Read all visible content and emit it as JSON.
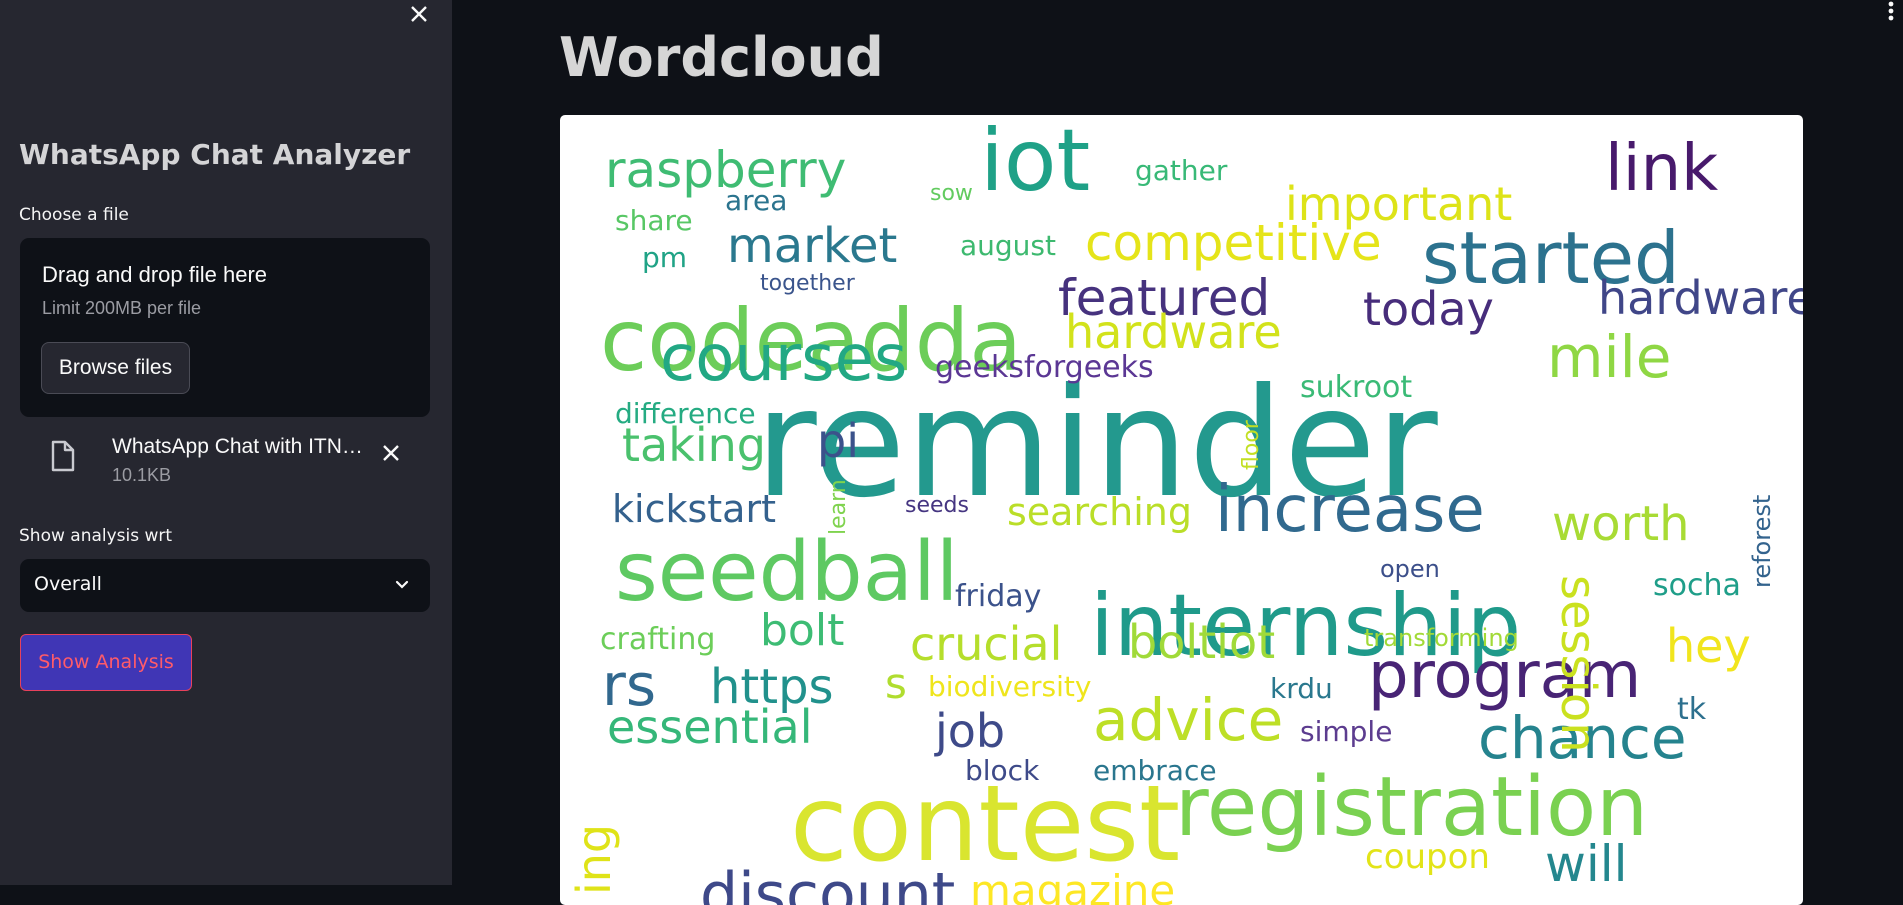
{
  "sidebar": {
    "title": "WhatsApp Chat Analyzer",
    "uploader_label": "Choose a file",
    "dropzone": {
      "instruction": "Drag and drop file here",
      "limit": "Limit 200MB per file",
      "browse_label": "Browse files"
    },
    "file": {
      "name": "WhatsApp Chat with ITN…",
      "size": "10.1KB"
    },
    "select_label": "Show analysis wrt",
    "select_value": "Overall",
    "analysis_button": "Show Analysis"
  },
  "main": {
    "title": "Wordcloud"
  },
  "wordcloud": {
    "words": [
      {
        "text": "reminder",
        "color": "#23998e"
      },
      {
        "text": "contest",
        "color": "#d9e52f"
      },
      {
        "text": "codeadda",
        "color": "#6ccd59"
      },
      {
        "text": "internship",
        "color": "#1f9a8a"
      },
      {
        "text": "seedball",
        "color": "#5ec962"
      },
      {
        "text": "registration",
        "color": "#7ad151"
      },
      {
        "text": "iot",
        "color": "#1fa187"
      },
      {
        "text": "courses",
        "color": "#22a884"
      },
      {
        "text": "started",
        "color": "#2c728e"
      },
      {
        "text": "increase",
        "color": "#30698e"
      },
      {
        "text": "program",
        "color": "#482475"
      },
      {
        "text": "link",
        "color": "#481a6c"
      },
      {
        "text": "advice",
        "color": "#bddf26"
      },
      {
        "text": "chance",
        "color": "#25838e"
      },
      {
        "text": "mile",
        "color": "#8fd744"
      },
      {
        "text": "competitive",
        "color": "#e5e419"
      },
      {
        "text": "raspberry",
        "color": "#3fbc73"
      },
      {
        "text": "featured",
        "color": "#46327e"
      },
      {
        "text": "hardware",
        "color": "#d2e21b"
      },
      {
        "text": "market",
        "color": "#2a788e"
      },
      {
        "text": "important",
        "color": "#dde318"
      },
      {
        "text": "today",
        "color": "#472d7b"
      },
      {
        "text": "taking",
        "color": "#4ac16d"
      },
      {
        "text": "worth",
        "color": "#a8db34"
      },
      {
        "text": "session",
        "color": "#cae11f"
      },
      {
        "text": "essential",
        "color": "#35b779"
      },
      {
        "text": "crucial",
        "color": "#b5de2b"
      },
      {
        "text": "boltiot",
        "color": "#a0da39"
      },
      {
        "text": "bolt",
        "color": "#3dbc74"
      },
      {
        "text": "https",
        "color": "#21918c"
      },
      {
        "text": "rs",
        "color": "#31688e"
      },
      {
        "text": "job",
        "color": "#3e4a89"
      },
      {
        "text": "kickstart",
        "color": "#34618d"
      },
      {
        "text": "searching",
        "color": "#bade28"
      },
      {
        "text": "hey",
        "color": "#f1e51d"
      },
      {
        "text": "pi",
        "color": "#3b528b"
      },
      {
        "text": "geeksforgeeks",
        "color": "#5b3794"
      },
      {
        "text": "sukroot",
        "color": "#3aba76"
      },
      {
        "text": "difference",
        "color": "#25ab82"
      },
      {
        "text": "friday",
        "color": "#3b528b"
      },
      {
        "text": "simple",
        "color": "#5c3c8f"
      },
      {
        "text": "tk",
        "color": "#2d708e"
      },
      {
        "text": "socha",
        "color": "#1f9e89"
      },
      {
        "text": "reforest",
        "color": "#33638d"
      },
      {
        "text": "will",
        "color": "#24878e"
      },
      {
        "text": "coupon",
        "color": "#e2e418"
      },
      {
        "text": "gather",
        "color": "#38b977"
      },
      {
        "text": "area",
        "color": "#2b748e"
      },
      {
        "text": "share",
        "color": "#58c765"
      },
      {
        "text": "sow",
        "color": "#62cb5f"
      },
      {
        "text": "august",
        "color": "#3db96f"
      },
      {
        "text": "pm",
        "color": "#20a386"
      },
      {
        "text": "together",
        "color": "#3a548c"
      },
      {
        "text": "crafting",
        "color": "#6cce59"
      },
      {
        "text": "biodiversity",
        "color": "#efe51c"
      },
      {
        "text": "krdu",
        "color": "#2a788e"
      },
      {
        "text": "block",
        "color": "#3e4a89"
      },
      {
        "text": "embrace",
        "color": "#2a768e"
      },
      {
        "text": "transforming",
        "color": "#a2da37"
      },
      {
        "text": "open",
        "color": "#3c4f8a"
      },
      {
        "text": "seeds",
        "color": "#453581"
      },
      {
        "text": "learn",
        "color": "#7fd34e"
      },
      {
        "text": "floor",
        "color": "#c2df23"
      },
      {
        "text": "s",
        "color": "#b0dd2f"
      },
      {
        "text": "discount",
        "color": "#3e4989"
      },
      {
        "text": "magazine",
        "color": "#fde725"
      },
      {
        "text": "ing",
        "color": "#dfe318"
      },
      {
        "text": "hardware",
        "color": "#404688"
      }
    ]
  }
}
